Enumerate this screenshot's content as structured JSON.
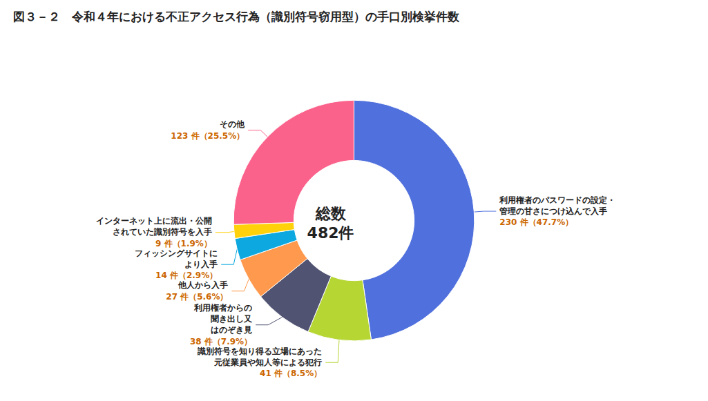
{
  "chart_data": {
    "type": "donut",
    "title": "図３－２　令和４年における不正アクセス行為（識別符号窃用型）の手口別検挙件数",
    "annotations": [
      "総数",
      "482件"
    ],
    "categories": [
      "利用権者のパスワードの設定・\n管理の甘さにつけ込んで入手",
      "識別符号を知り得る立場にあった\n元従業員や知人等による犯行",
      "利用権者からの\n聞き出し又\nはのぞき見",
      "他人から入手",
      "フィッシングサイトに\nより入手",
      "インターネット上に流出・公開\nされていた識別符号を入手",
      "その他"
    ],
    "values": [
      230,
      41,
      38,
      27,
      14,
      9,
      123
    ],
    "value_labels": [
      "230 件（47.7%）",
      "41 件（8.5%）",
      "38 件（7.9%）",
      "27 件（5.6%）",
      "14 件（2.9%）",
      "9 件（1.9%）",
      "123 件（25.5%）"
    ],
    "data_labels": true
  }
}
